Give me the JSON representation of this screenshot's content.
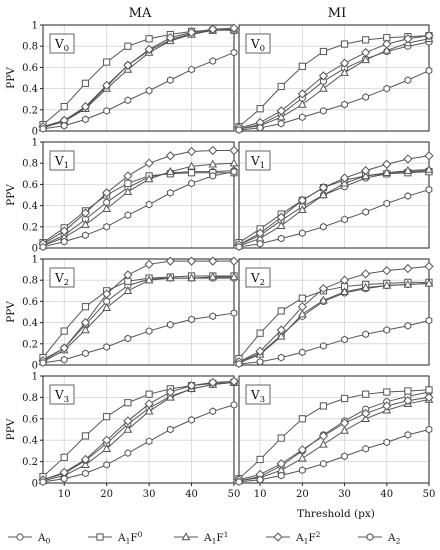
{
  "columns": [
    "MA",
    "MI"
  ],
  "ylabel": "PPV",
  "xlabel": "Threshold (px)",
  "legend": {
    "placement": "bottom",
    "items": [
      {
        "name": "A_0",
        "label": "A",
        "sub": "0",
        "sup": "",
        "marker": "circle"
      },
      {
        "name": "A_1F^0",
        "label": "A",
        "sub": "1",
        "mid": "F",
        "sup": "0",
        "marker": "square"
      },
      {
        "name": "A_1F^1",
        "label": "A",
        "sub": "1",
        "mid": "F",
        "sup": "1",
        "marker": "triangle"
      },
      {
        "name": "A_1F^2",
        "label": "A",
        "sub": "1",
        "mid": "F",
        "sup": "2",
        "marker": "diamond"
      },
      {
        "name": "A_2",
        "label": "A",
        "sub": "2",
        "sup": "",
        "marker": "hexagon"
      }
    ]
  },
  "chart_data": [
    {
      "type": "line",
      "panel": "MA-V0",
      "row_label": "V",
      "row_sub": "0",
      "column": "MA",
      "xlim": [
        5,
        50
      ],
      "ylim": [
        0,
        1
      ],
      "grid": true,
      "x": [
        5,
        10,
        15,
        20,
        25,
        30,
        35,
        40,
        45,
        50
      ],
      "xticks": [
        10,
        20,
        30,
        40,
        50
      ],
      "yticks": [
        0,
        0.2,
        0.4,
        0.6,
        0.8,
        1
      ],
      "ytick_labels": [
        "0",
        "0.2",
        "0.4",
        "0.6",
        "0.8",
        "1"
      ],
      "series": [
        {
          "name": "A_0",
          "values": [
            0.04,
            0.1,
            0.22,
            0.42,
            0.62,
            0.76,
            0.86,
            0.92,
            0.95,
            0.96
          ]
        },
        {
          "name": "A_1F^0",
          "values": [
            0.06,
            0.23,
            0.45,
            0.65,
            0.8,
            0.87,
            0.91,
            0.94,
            0.95,
            0.95
          ]
        },
        {
          "name": "A_1F^1",
          "values": [
            0.03,
            0.09,
            0.21,
            0.4,
            0.58,
            0.74,
            0.85,
            0.91,
            0.95,
            0.96
          ]
        },
        {
          "name": "A_1F^2",
          "values": [
            0.04,
            0.1,
            0.23,
            0.43,
            0.62,
            0.77,
            0.88,
            0.93,
            0.96,
            0.97
          ]
        },
        {
          "name": "A_2",
          "values": [
            0.02,
            0.05,
            0.11,
            0.19,
            0.29,
            0.38,
            0.48,
            0.58,
            0.66,
            0.74
          ]
        }
      ]
    },
    {
      "type": "line",
      "panel": "MI-V0",
      "row_label": "V",
      "row_sub": "0",
      "column": "MI",
      "xlim": [
        5,
        50
      ],
      "ylim": [
        0,
        1
      ],
      "grid": true,
      "x": [
        5,
        10,
        15,
        20,
        25,
        30,
        35,
        40,
        45,
        50
      ],
      "xticks": [
        10,
        20,
        30,
        40,
        50
      ],
      "yticks": [
        0,
        0.2,
        0.4,
        0.6,
        0.8,
        1
      ],
      "ytick_labels": [
        "0",
        "0.2",
        "0.4",
        "0.6",
        "0.8",
        "1"
      ],
      "series": [
        {
          "name": "A_0",
          "values": [
            0.02,
            0.06,
            0.16,
            0.31,
            0.47,
            0.59,
            0.68,
            0.75,
            0.8,
            0.84
          ]
        },
        {
          "name": "A_1F^0",
          "values": [
            0.04,
            0.21,
            0.42,
            0.61,
            0.75,
            0.82,
            0.86,
            0.88,
            0.89,
            0.9
          ]
        },
        {
          "name": "A_1F^1",
          "values": [
            0.02,
            0.05,
            0.13,
            0.25,
            0.4,
            0.55,
            0.67,
            0.76,
            0.83,
            0.87
          ]
        },
        {
          "name": "A_1F^2",
          "values": [
            0.03,
            0.08,
            0.19,
            0.35,
            0.52,
            0.64,
            0.74,
            0.82,
            0.87,
            0.9
          ]
        },
        {
          "name": "A_2",
          "values": [
            0.01,
            0.03,
            0.07,
            0.13,
            0.19,
            0.25,
            0.32,
            0.4,
            0.48,
            0.57
          ]
        }
      ]
    },
    {
      "type": "line",
      "panel": "MA-V1",
      "row_label": "V",
      "row_sub": "1",
      "column": "MA",
      "xlim": [
        5,
        50
      ],
      "ylim": [
        0,
        1
      ],
      "grid": true,
      "x": [
        5,
        10,
        15,
        20,
        25,
        30,
        35,
        40,
        45,
        50
      ],
      "xticks": [
        10,
        20,
        30,
        40,
        50
      ],
      "yticks": [
        0,
        0.2,
        0.4,
        0.6,
        0.8,
        1
      ],
      "ytick_labels": [
        "0",
        "0.2",
        "0.4",
        "0.6",
        "0.8",
        "1"
      ],
      "series": [
        {
          "name": "A_0",
          "values": [
            0.03,
            0.12,
            0.27,
            0.43,
            0.57,
            0.67,
            0.71,
            0.72,
            0.72,
            0.73
          ]
        },
        {
          "name": "A_1F^0",
          "values": [
            0.05,
            0.19,
            0.35,
            0.5,
            0.61,
            0.68,
            0.7,
            0.71,
            0.71,
            0.71
          ]
        },
        {
          "name": "A_1F^1",
          "values": [
            0.02,
            0.1,
            0.22,
            0.37,
            0.53,
            0.65,
            0.72,
            0.77,
            0.79,
            0.8
          ]
        },
        {
          "name": "A_1F^2",
          "values": [
            0.04,
            0.16,
            0.33,
            0.52,
            0.68,
            0.8,
            0.87,
            0.91,
            0.92,
            0.92
          ]
        },
        {
          "name": "A_2",
          "values": [
            0.01,
            0.06,
            0.12,
            0.2,
            0.31,
            0.41,
            0.52,
            0.61,
            0.68,
            0.72
          ]
        }
      ]
    },
    {
      "type": "line",
      "panel": "MI-V1",
      "row_label": "V",
      "row_sub": "1",
      "column": "MI",
      "xlim": [
        5,
        50
      ],
      "ylim": [
        0,
        1
      ],
      "grid": true,
      "x": [
        5,
        10,
        15,
        20,
        25,
        30,
        35,
        40,
        45,
        50
      ],
      "xticks": [
        10,
        20,
        30,
        40,
        50
      ],
      "yticks": [
        0,
        0.2,
        0.4,
        0.6,
        0.8,
        1
      ],
      "ytick_labels": [
        "0",
        "0.2",
        "0.4",
        "0.6",
        "0.8",
        "1"
      ],
      "series": [
        {
          "name": "A_0",
          "values": [
            0.03,
            0.12,
            0.26,
            0.39,
            0.5,
            0.58,
            0.66,
            0.7,
            0.72,
            0.73
          ]
        },
        {
          "name": "A_1F^0",
          "values": [
            0.05,
            0.18,
            0.32,
            0.45,
            0.57,
            0.64,
            0.68,
            0.7,
            0.71,
            0.72
          ]
        },
        {
          "name": "A_1F^1",
          "values": [
            0.02,
            0.09,
            0.21,
            0.36,
            0.5,
            0.61,
            0.68,
            0.71,
            0.73,
            0.74
          ]
        },
        {
          "name": "A_1F^2",
          "values": [
            0.03,
            0.14,
            0.29,
            0.45,
            0.57,
            0.66,
            0.73,
            0.79,
            0.84,
            0.87
          ]
        },
        {
          "name": "A_2",
          "values": [
            0.01,
            0.04,
            0.09,
            0.14,
            0.2,
            0.27,
            0.34,
            0.42,
            0.49,
            0.55
          ]
        }
      ]
    },
    {
      "type": "line",
      "panel": "MA-V2",
      "row_label": "V",
      "row_sub": "2",
      "column": "MA",
      "xlim": [
        5,
        50
      ],
      "ylim": [
        0,
        1
      ],
      "grid": true,
      "x": [
        5,
        10,
        15,
        20,
        25,
        30,
        35,
        40,
        45,
        50
      ],
      "xticks": [
        10,
        20,
        30,
        40,
        50
      ],
      "yticks": [
        0,
        0.2,
        0.4,
        0.6,
        0.8,
        1
      ],
      "ytick_labels": [
        "0",
        "0.2",
        "0.4",
        "0.6",
        "0.8",
        "1"
      ],
      "series": [
        {
          "name": "A_0",
          "values": [
            0.05,
            0.16,
            0.38,
            0.6,
            0.75,
            0.81,
            0.82,
            0.82,
            0.82,
            0.82
          ]
        },
        {
          "name": "A_1F^0",
          "values": [
            0.07,
            0.32,
            0.55,
            0.7,
            0.79,
            0.82,
            0.83,
            0.84,
            0.84,
            0.84
          ]
        },
        {
          "name": "A_1F^1",
          "values": [
            0.03,
            0.14,
            0.33,
            0.54,
            0.7,
            0.8,
            0.82,
            0.82,
            0.83,
            0.83
          ]
        },
        {
          "name": "A_1F^2",
          "values": [
            0.04,
            0.16,
            0.4,
            0.67,
            0.85,
            0.95,
            0.98,
            0.98,
            0.98,
            0.98
          ]
        },
        {
          "name": "A_2",
          "values": [
            0.02,
            0.05,
            0.11,
            0.17,
            0.25,
            0.32,
            0.38,
            0.43,
            0.46,
            0.49
          ]
        }
      ]
    },
    {
      "type": "line",
      "panel": "MI-V2",
      "row_label": "V",
      "row_sub": "2",
      "column": "MI",
      "xlim": [
        5,
        50
      ],
      "ylim": [
        0,
        1
      ],
      "grid": true,
      "x": [
        5,
        10,
        15,
        20,
        25,
        30,
        35,
        40,
        45,
        50
      ],
      "xticks": [
        10,
        20,
        30,
        40,
        50
      ],
      "yticks": [
        0,
        0.2,
        0.4,
        0.6,
        0.8,
        1
      ],
      "ytick_labels": [
        "0",
        "0.2",
        "0.4",
        "0.6",
        "0.8",
        "1"
      ],
      "series": [
        {
          "name": "A_0",
          "values": [
            0.03,
            0.11,
            0.28,
            0.46,
            0.6,
            0.68,
            0.72,
            0.75,
            0.76,
            0.77
          ]
        },
        {
          "name": "A_1F^0",
          "values": [
            0.06,
            0.3,
            0.51,
            0.63,
            0.7,
            0.74,
            0.76,
            0.77,
            0.78,
            0.78
          ]
        },
        {
          "name": "A_1F^1",
          "values": [
            0.02,
            0.1,
            0.27,
            0.48,
            0.61,
            0.69,
            0.73,
            0.75,
            0.76,
            0.77
          ]
        },
        {
          "name": "A_1F^2",
          "values": [
            0.03,
            0.13,
            0.33,
            0.55,
            0.72,
            0.8,
            0.86,
            0.89,
            0.91,
            0.93
          ]
        },
        {
          "name": "A_2",
          "values": [
            0.01,
            0.03,
            0.07,
            0.12,
            0.18,
            0.24,
            0.29,
            0.33,
            0.37,
            0.42
          ]
        }
      ]
    },
    {
      "type": "line",
      "panel": "MA-V3",
      "row_label": "V",
      "row_sub": "3",
      "column": "MA",
      "xlim": [
        5,
        50
      ],
      "ylim": [
        0,
        1
      ],
      "grid": true,
      "x": [
        5,
        10,
        15,
        20,
        25,
        30,
        35,
        40,
        45,
        50
      ],
      "xticks": [
        10,
        20,
        30,
        40,
        50
      ],
      "yticks": [
        0,
        0.2,
        0.4,
        0.6,
        0.8,
        1
      ],
      "ytick_labels": [
        "0",
        "0.2",
        "0.4",
        "0.6",
        "0.8",
        "1"
      ],
      "series": [
        {
          "name": "A_0",
          "values": [
            0.03,
            0.09,
            0.21,
            0.37,
            0.55,
            0.7,
            0.81,
            0.88,
            0.92,
            0.94
          ]
        },
        {
          "name": "A_1F^0",
          "values": [
            0.06,
            0.24,
            0.44,
            0.62,
            0.75,
            0.83,
            0.88,
            0.91,
            0.93,
            0.94
          ]
        },
        {
          "name": "A_1F^1",
          "values": [
            0.02,
            0.07,
            0.17,
            0.32,
            0.5,
            0.67,
            0.8,
            0.88,
            0.92,
            0.94
          ]
        },
        {
          "name": "A_1F^2",
          "values": [
            0.03,
            0.1,
            0.22,
            0.4,
            0.58,
            0.74,
            0.85,
            0.91,
            0.94,
            0.95
          ]
        },
        {
          "name": "A_2",
          "values": [
            0.01,
            0.04,
            0.09,
            0.17,
            0.28,
            0.39,
            0.5,
            0.59,
            0.67,
            0.73
          ]
        }
      ]
    },
    {
      "type": "line",
      "panel": "MI-V3",
      "row_label": "V",
      "row_sub": "3",
      "column": "MI",
      "xlim": [
        5,
        50
      ],
      "ylim": [
        0,
        1
      ],
      "grid": true,
      "x": [
        5,
        10,
        15,
        20,
        25,
        30,
        35,
        40,
        45,
        50
      ],
      "xticks": [
        10,
        20,
        30,
        40,
        50
      ],
      "yticks": [
        0,
        0.2,
        0.4,
        0.6,
        0.8,
        1
      ],
      "ytick_labels": [
        "0",
        "0.2",
        "0.4",
        "0.6",
        "0.8",
        "1"
      ],
      "series": [
        {
          "name": "A_0",
          "values": [
            0.02,
            0.06,
            0.16,
            0.3,
            0.45,
            0.58,
            0.69,
            0.76,
            0.81,
            0.85
          ]
        },
        {
          "name": "A_1F^0",
          "values": [
            0.04,
            0.22,
            0.42,
            0.6,
            0.72,
            0.79,
            0.83,
            0.85,
            0.86,
            0.87
          ]
        },
        {
          "name": "A_1F^1",
          "values": [
            0.02,
            0.05,
            0.12,
            0.23,
            0.36,
            0.49,
            0.6,
            0.68,
            0.74,
            0.78
          ]
        },
        {
          "name": "A_1F^2",
          "values": [
            0.03,
            0.08,
            0.18,
            0.31,
            0.44,
            0.56,
            0.65,
            0.72,
            0.77,
            0.8
          ]
        },
        {
          "name": "A_2",
          "values": [
            0.01,
            0.03,
            0.07,
            0.12,
            0.18,
            0.25,
            0.32,
            0.38,
            0.45,
            0.5
          ]
        }
      ]
    }
  ]
}
